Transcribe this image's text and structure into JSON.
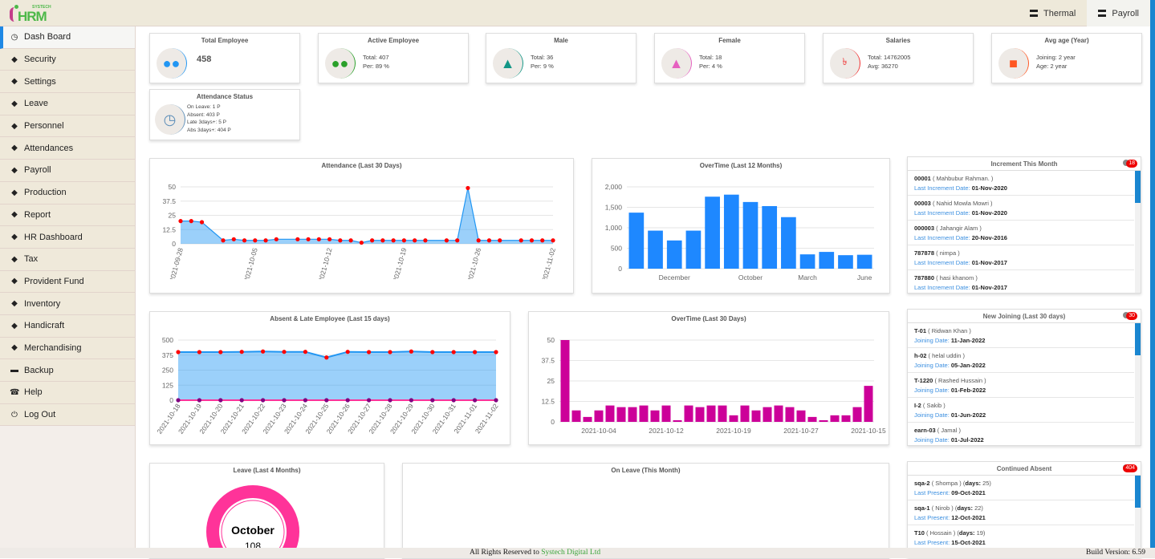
{
  "header": {
    "logo_text": "HRM",
    "logo_brand": "SYSTECH",
    "tabs": [
      {
        "label": "Thermal",
        "icon": "server-icon"
      },
      {
        "label": "Payroll",
        "icon": "server-icon",
        "active": true
      }
    ]
  },
  "sidebar": {
    "items": [
      {
        "label": "Dash Board",
        "icon": "dashboard-icon",
        "active": true
      },
      {
        "label": "Security",
        "icon": "tags-icon"
      },
      {
        "label": "Settings",
        "icon": "tags-icon"
      },
      {
        "label": "Leave",
        "icon": "tags-icon"
      },
      {
        "label": "Personnel",
        "icon": "tags-icon"
      },
      {
        "label": "Attendances",
        "icon": "tags-icon"
      },
      {
        "label": "Payroll",
        "icon": "tags-icon"
      },
      {
        "label": "Production",
        "icon": "tags-icon"
      },
      {
        "label": "Report",
        "icon": "tags-icon"
      },
      {
        "label": "HR Dashboard",
        "icon": "tags-icon"
      },
      {
        "label": "Tax",
        "icon": "tags-icon"
      },
      {
        "label": "Provident Fund",
        "icon": "tags-icon"
      },
      {
        "label": "Inventory",
        "icon": "tags-icon"
      },
      {
        "label": "Handicraft",
        "icon": "tags-icon"
      },
      {
        "label": "Merchandising",
        "icon": "tags-icon"
      },
      {
        "label": "Backup",
        "icon": "hdd-icon"
      },
      {
        "label": "Help",
        "icon": "phone-icon"
      },
      {
        "label": "Log Out",
        "icon": "power-icon"
      }
    ]
  },
  "stats": {
    "total": {
      "title": "Total Employee",
      "value": "458",
      "color": "#2196f3"
    },
    "active": {
      "title": "Active Employee",
      "l1": "Total: 407",
      "l2": "Per: 89 %",
      "color": "#2aa02a"
    },
    "male": {
      "title": "Male",
      "l1": "Total: 36",
      "l2": "Per: 9 %",
      "color": "#139686"
    },
    "female": {
      "title": "Female",
      "l1": "Total: 18",
      "l2": "Per: 4 %",
      "color": "#e660c0"
    },
    "salaries": {
      "title": "Salaries",
      "l1": "Total: 14762005",
      "l2": "Avg: 36270",
      "icon_glyph": "৳",
      "color": "#f03030"
    },
    "age": {
      "title": "Avg age (Year)",
      "l1": "Joining: 2 year",
      "l2": "Age: 2 year",
      "color": "#ff5722"
    },
    "attendance": {
      "title": "Attendance Status",
      "lines": [
        "On Leave: 1 P",
        "Absent: 403 P",
        "Late 3days+: 5 P",
        "Abs 3days+: 404 P"
      ],
      "color": "#5b8db8"
    }
  },
  "lists": {
    "increment": {
      "title": "Increment This Month",
      "badge": "18",
      "label": "Last Increment Date:",
      "rows": [
        {
          "id": "00001",
          "name": "( Mahbubur Rahman. )",
          "date": "01-Nov-2020"
        },
        {
          "id": "00003",
          "name": "( Nahid Mowla Mowri )",
          "date": "01-Nov-2020"
        },
        {
          "id": "000003",
          "name": "( Jahangir Alam )",
          "date": "20-Nov-2016"
        },
        {
          "id": "787878",
          "name": "( nimpa )",
          "date": "01-Nov-2017"
        },
        {
          "id": "787880",
          "name": "( hasi khanom )",
          "date": "01-Nov-2017"
        }
      ]
    },
    "joining": {
      "title": "New Joining (Last 30 days)",
      "badge": "30",
      "label": "Joining Date:",
      "rows": [
        {
          "id": "T-01",
          "name": "( Ridwan Khan )",
          "date": "11-Jan-2022"
        },
        {
          "id": "h-02",
          "name": "( helal uddin )",
          "date": "05-Jan-2022"
        },
        {
          "id": "T-1220",
          "name": "( Rashed Hussain )",
          "date": "01-Feb-2022"
        },
        {
          "id": "I-2",
          "name": "( Sakib )",
          "date": "01-Jun-2022"
        },
        {
          "id": "earn-03",
          "name": "( Jamal )",
          "date": "01-Jul-2022"
        }
      ]
    },
    "absent": {
      "title": "Continued Absent",
      "badge": "404",
      "label": "Last Present:",
      "days_label": "days:",
      "rows": [
        {
          "id": "sqa-2",
          "name": "( Shompa )",
          "days": "25",
          "date": "09-Oct-2021"
        },
        {
          "id": "sqa-1",
          "name": "( Nirob )",
          "days": "22",
          "date": "12-Oct-2021"
        },
        {
          "id": "T10",
          "name": "( Hossain )",
          "days": "19",
          "date": "15-Oct-2021"
        }
      ]
    }
  },
  "on_leave": {
    "title": "On Leave (This Month)"
  },
  "chart_data": [
    {
      "type": "area",
      "title": "Attendance (Last 30 Days)",
      "ylim": [
        0,
        50
      ],
      "yticks": [
        "0",
        "12.5",
        "25",
        "37.5",
        "50"
      ],
      "xticks": [
        "2021-09-28",
        "2021-10-05",
        "2021-10-12",
        "2021-10-19",
        "2021-10-26",
        "2021-11-02"
      ],
      "x": [
        "2021-09-28",
        "2021-09-29",
        "2021-09-30",
        "2021-10-02",
        "2021-10-03",
        "2021-10-04",
        "2021-10-05",
        "2021-10-06",
        "2021-10-07",
        "2021-10-09",
        "2021-10-10",
        "2021-10-11",
        "2021-10-12",
        "2021-10-13",
        "2021-10-14",
        "2021-10-15",
        "2021-10-16",
        "2021-10-17",
        "2021-10-18",
        "2021-10-19",
        "2021-10-20",
        "2021-10-21",
        "2021-10-23",
        "2021-10-24",
        "2021-10-25",
        "2021-10-26",
        "2021-10-27",
        "2021-10-28",
        "2021-10-30",
        "2021-10-31",
        "2021-11-01",
        "2021-11-02"
      ],
      "values": [
        20,
        20,
        19,
        3,
        4,
        3,
        3,
        3,
        4,
        4,
        4,
        4,
        4,
        3,
        3,
        1,
        3,
        3,
        3,
        3,
        3,
        3,
        3,
        3,
        49,
        3,
        3,
        3,
        3,
        3,
        3,
        3
      ],
      "color": "#2196f3",
      "point_color": "#ff0000"
    },
    {
      "type": "bar",
      "title": "OverTime (Last 12 Months)",
      "ylim": [
        0,
        2000
      ],
      "yticks": [
        "0",
        "500",
        "1,000",
        "1,500",
        "2,000"
      ],
      "categories": [
        "",
        "",
        "December",
        "",
        "",
        "",
        "October",
        "",
        "",
        "March",
        "",
        "",
        "June"
      ],
      "values": [
        1370,
        930,
        690,
        930,
        1760,
        1810,
        1630,
        1530,
        1260,
        350,
        410,
        330,
        340
      ],
      "color": "#1e88ff"
    },
    {
      "type": "area",
      "title": "Absent & Late Employee (Last 15 days)",
      "ylim": [
        0,
        500
      ],
      "yticks": [
        "0",
        "125",
        "250",
        "375",
        "500"
      ],
      "x": [
        "2021-10-18",
        "2021-10-19",
        "2021-10-20",
        "2021-10-21",
        "2021-10-22",
        "2021-10-23",
        "2021-10-24",
        "2021-10-25",
        "2021-10-26",
        "2021-10-27",
        "2021-10-28",
        "2021-10-29",
        "2021-10-30",
        "2021-10-31",
        "2021-11-01",
        "2021-11-02"
      ],
      "series": [
        {
          "values": [
            400,
            400,
            400,
            402,
            405,
            402,
            402,
            355,
            402,
            400,
            400,
            405,
            400,
            400,
            400,
            400
          ],
          "color": "#2196f3",
          "point_color": "#ff0000"
        },
        {
          "values": [
            0,
            0,
            0,
            0,
            0,
            0,
            0,
            0,
            0,
            0,
            0,
            0,
            0,
            0,
            0,
            0
          ],
          "color": "#ff3399",
          "point_color": "#800080"
        }
      ]
    },
    {
      "type": "bar",
      "title": "OverTime (Last 30 Days)",
      "ylim": [
        0,
        50
      ],
      "yticks": [
        "0",
        "12.5",
        "25",
        "37.5",
        "50"
      ],
      "categories": [
        "",
        "",
        "",
        "2021-10-04",
        "",
        "",
        "",
        "",
        "",
        "2021-10-12",
        "",
        "",
        "",
        "",
        "",
        "2021-10-19",
        "",
        "",
        "",
        "",
        "",
        "2021-10-27",
        "",
        "",
        "",
        "",
        "",
        "2021-10-15"
      ],
      "values": [
        50,
        7,
        3,
        7,
        10,
        9,
        9,
        10,
        7,
        10,
        1,
        10,
        9,
        10,
        10,
        4,
        10,
        7,
        9,
        10,
        9,
        7,
        3,
        1,
        4,
        4,
        9,
        22
      ],
      "color": "#cc0099"
    },
    {
      "type": "pie",
      "title": "Leave (Last 4 Months)",
      "labels": [
        "October"
      ],
      "values": [
        108
      ],
      "color": "#ff3399"
    }
  ],
  "footer": {
    "copyright": "All Rights Reserved to ",
    "company": "Systech Digital Ltd",
    "version": "Build Version: 6.59"
  }
}
